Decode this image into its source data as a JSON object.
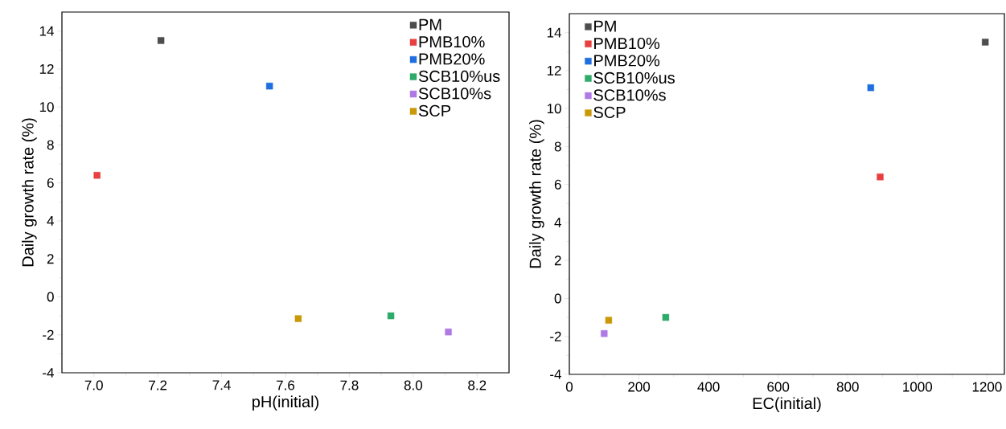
{
  "chart_data": [
    {
      "type": "scatter",
      "xlabel": "pH(initial)",
      "ylabel": "Daily growth rate (%)",
      "xlim": [
        6.9,
        8.3
      ],
      "ylim": [
        -4,
        15
      ],
      "xticks": [
        {
          "value": 7.0,
          "label": "7.0"
        },
        {
          "value": 7.2,
          "label": "7.2"
        },
        {
          "value": 7.4,
          "label": "7.4"
        },
        {
          "value": 7.6,
          "label": "7.6"
        },
        {
          "value": 7.8,
          "label": "7.8"
        },
        {
          "value": 8.0,
          "label": "8.0"
        },
        {
          "value": 8.2,
          "label": "8.2"
        }
      ],
      "yticks": [
        -4,
        -2,
        0,
        2,
        4,
        6,
        8,
        10,
        12,
        14
      ],
      "legend": "top right",
      "marker": "square",
      "series": [
        {
          "name": "PM",
          "color": "#4d4d4d",
          "x": [
            7.21
          ],
          "values": [
            13.5
          ]
        },
        {
          "name": "PMB10%",
          "color": "#e84040",
          "x": [
            7.01
          ],
          "values": [
            6.4
          ]
        },
        {
          "name": "PMB20%",
          "color": "#1f6fe0",
          "x": [
            7.55
          ],
          "values": [
            11.1
          ]
        },
        {
          "name": "SCB10%us",
          "color": "#2eaa6a",
          "x": [
            7.93
          ],
          "values": [
            -1.0
          ]
        },
        {
          "name": "SCB10%s",
          "color": "#b07ae6",
          "x": [
            8.11
          ],
          "values": [
            -1.85
          ]
        },
        {
          "name": "SCP",
          "color": "#c9990a",
          "x": [
            7.64
          ],
          "values": [
            -1.15
          ]
        }
      ]
    },
    {
      "type": "scatter",
      "xlabel": "EC(initial)",
      "ylabel": "Daily growth rate (%)",
      "xlim": [
        0,
        1250
      ],
      "ylim": [
        -4,
        15
      ],
      "xticks": [
        0,
        200,
        400,
        600,
        800,
        1000,
        1200
      ],
      "yticks": [
        -4,
        -2,
        0,
        2,
        4,
        6,
        8,
        10,
        12,
        14
      ],
      "legend": "top left",
      "marker": "square",
      "series": [
        {
          "name": "PM",
          "color": "#4d4d4d",
          "x": [
            1195
          ],
          "values": [
            13.5
          ]
        },
        {
          "name": "PMB10%",
          "color": "#e84040",
          "x": [
            893
          ],
          "values": [
            6.4
          ]
        },
        {
          "name": "PMB20%",
          "color": "#1f6fe0",
          "x": [
            866
          ],
          "values": [
            11.1
          ]
        },
        {
          "name": "SCB10%us",
          "color": "#2eaa6a",
          "x": [
            277
          ],
          "values": [
            -1.0
          ]
        },
        {
          "name": "SCB10%s",
          "color": "#b07ae6",
          "x": [
            100
          ],
          "values": [
            -1.85
          ]
        },
        {
          "name": "SCP",
          "color": "#c9990a",
          "x": [
            113
          ],
          "values": [
            -1.15
          ]
        }
      ]
    }
  ]
}
